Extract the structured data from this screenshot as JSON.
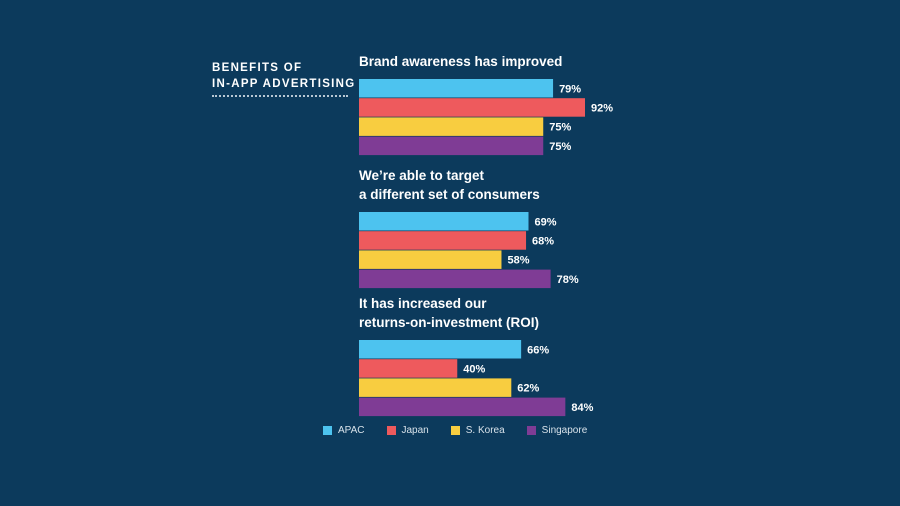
{
  "side_title": {
    "line1": "BENEFITS OF",
    "line2": "IN-APP ADVERTISING"
  },
  "chart_data": {
    "type": "bar",
    "orientation": "horizontal",
    "legend_position": "bottom",
    "series": [
      {
        "name": "APAC",
        "color": "#4dc3ef"
      },
      {
        "name": "Japan",
        "color": "#ee5a5d"
      },
      {
        "name": "S. Korea",
        "color": "#f8cd40"
      },
      {
        "name": "Singapore",
        "color": "#7f3c95"
      }
    ],
    "groups": [
      {
        "title": [
          "Brand awareness has improved"
        ],
        "values": [
          79,
          92,
          75,
          75
        ],
        "labels": [
          "79%",
          "92%",
          "75%",
          "75%"
        ]
      },
      {
        "title": [
          "We’re able to target",
          "a different set of consumers"
        ],
        "values": [
          69,
          68,
          58,
          78
        ],
        "labels": [
          "69%",
          "68%",
          "58%",
          "78%"
        ]
      },
      {
        "title": [
          "It has increased our",
          "returns-on-investment (ROI)"
        ],
        "values": [
          66,
          40,
          62,
          84
        ],
        "labels": [
          "66%",
          "40%",
          "62%",
          "84%"
        ]
      }
    ],
    "xlim": [
      0,
      100
    ]
  }
}
